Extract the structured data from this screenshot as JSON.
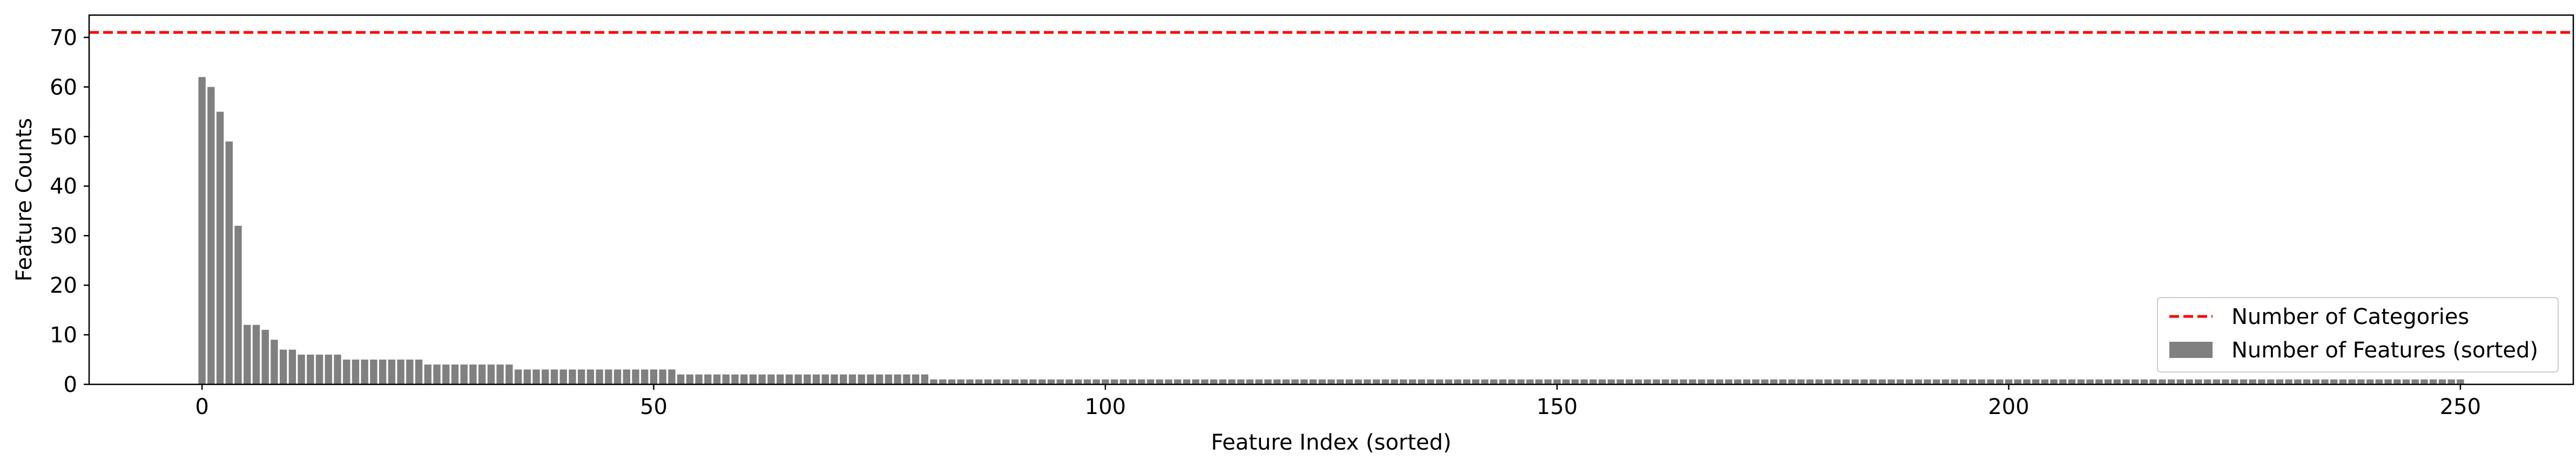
{
  "chart_data": {
    "type": "bar",
    "xlabel": "Feature Index (sorted)",
    "ylabel": "Feature Counts",
    "xlim": [
      -12.5,
      262.5
    ],
    "ylim": [
      0,
      74.5
    ],
    "xticks": [
      0,
      50,
      100,
      150,
      200,
      250
    ],
    "yticks": [
      0,
      10,
      20,
      30,
      40,
      50,
      60,
      70
    ],
    "grid": false,
    "legend_position": "lower right",
    "bar_color": "#808080",
    "reference_line": {
      "name": "Number of Categories",
      "y": 71,
      "style": "dashed",
      "color": "#ff0000"
    },
    "series": [
      {
        "name": "Number of Features (sorted)",
        "x_start": 0,
        "values": [
          62,
          60,
          55,
          49,
          32,
          12,
          12,
          11,
          9,
          7,
          7,
          6,
          6,
          6,
          6,
          6,
          5,
          5,
          5,
          5,
          5,
          5,
          5,
          5,
          5,
          4,
          4,
          4,
          4,
          4,
          4,
          4,
          4,
          4,
          4,
          3,
          3,
          3,
          3,
          3,
          3,
          3,
          3,
          3,
          3,
          3,
          3,
          3,
          3,
          3,
          3,
          3,
          3,
          2,
          2,
          2,
          2,
          2,
          2,
          2,
          2,
          2,
          2,
          2,
          2,
          2,
          2,
          2,
          2,
          2,
          2,
          2,
          2,
          2,
          2,
          2,
          2,
          2,
          2,
          2,
          2,
          1,
          1,
          1,
          1,
          1,
          1,
          1,
          1,
          1,
          1,
          1,
          1,
          1,
          1,
          1,
          1,
          1,
          1,
          1,
          1,
          1,
          1,
          1,
          1,
          1,
          1,
          1,
          1,
          1,
          1,
          1,
          1,
          1,
          1,
          1,
          1,
          1,
          1,
          1,
          1,
          1,
          1,
          1,
          1,
          1,
          1,
          1,
          1,
          1,
          1,
          1,
          1,
          1,
          1,
          1,
          1,
          1,
          1,
          1,
          1,
          1,
          1,
          1,
          1,
          1,
          1,
          1,
          1,
          1,
          1,
          1,
          1,
          1,
          1,
          1,
          1,
          1,
          1,
          1,
          1,
          1,
          1,
          1,
          1,
          1,
          1,
          1,
          1,
          1,
          1,
          1,
          1,
          1,
          1,
          1,
          1,
          1,
          1,
          1,
          1,
          1,
          1,
          1,
          1,
          1,
          1,
          1,
          1,
          1,
          1,
          1,
          1,
          1,
          1,
          1,
          1,
          1,
          1,
          1,
          1,
          1,
          1,
          1,
          1,
          1,
          1,
          1,
          1,
          1,
          1,
          1,
          1,
          1,
          1,
          1,
          1,
          1,
          1,
          1,
          1,
          1,
          1,
          1,
          1,
          1,
          1,
          1,
          1,
          1,
          1,
          1,
          1,
          1,
          1,
          1,
          1,
          1,
          1,
          1,
          1,
          1,
          1,
          1,
          1,
          1,
          1,
          1,
          1,
          1,
          1
        ]
      }
    ]
  }
}
